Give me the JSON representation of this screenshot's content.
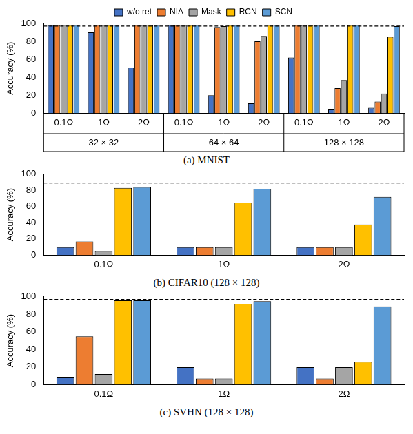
{
  "chart_data": [
    {
      "type": "bar",
      "caption": "(a) MNIST",
      "y_label": "Accuracy (%)",
      "categories": [
        "0.1Ω",
        "1Ω",
        "2Ω",
        "0.1Ω",
        "1Ω",
        "2Ω",
        "0.1Ω",
        "1Ω",
        "2Ω"
      ],
      "groups": [
        {
          "label": "32 × 32",
          "span": 3
        },
        {
          "label": "64 × 64",
          "span": 3
        },
        {
          "label": "128 × 128",
          "span": 3
        }
      ],
      "series": [
        {
          "name": "w/o ret",
          "color": "#4472c4",
          "values": [
            98,
            90,
            51,
            98,
            20,
            11,
            62,
            5,
            6
          ]
        },
        {
          "name": "NIA",
          "color": "#ed7d31",
          "values": [
            98,
            98,
            98,
            98,
            96,
            80,
            98,
            28,
            13
          ]
        },
        {
          "name": "Mask",
          "color": "#a5a5a5",
          "values": [
            98,
            98,
            98,
            98,
            97,
            86,
            98,
            37,
            22
          ]
        },
        {
          "name": "RCN",
          "color": "#ffc000",
          "values": [
            98,
            98,
            98,
            98,
            98,
            98,
            98,
            98,
            85
          ]
        },
        {
          "name": "SCN",
          "color": "#5b9bd5",
          "values": [
            98,
            98,
            98,
            98,
            98,
            98,
            98,
            98,
            97
          ]
        }
      ],
      "reference": 97,
      "ylim": [
        0,
        100
      ],
      "yticks": [
        0,
        20,
        40,
        60,
        80,
        100
      ],
      "grid": false,
      "legend": "top"
    },
    {
      "type": "bar",
      "caption": "(b) CIFAR10 (128 × 128)",
      "y_label": "Accuracy (%)",
      "categories": [
        "0.1Ω",
        "1Ω",
        "2Ω"
      ],
      "series": [
        {
          "name": "w/o ret",
          "color": "#4472c4",
          "values": [
            10,
            10,
            10
          ]
        },
        {
          "name": "NIA",
          "color": "#ed7d31",
          "values": [
            17,
            10,
            10
          ]
        },
        {
          "name": "Mask",
          "color": "#a5a5a5",
          "values": [
            5,
            10,
            10
          ]
        },
        {
          "name": "RCN",
          "color": "#ffc000",
          "values": [
            83,
            65,
            38
          ]
        },
        {
          "name": "SCN",
          "color": "#5b9bd5",
          "values": [
            84,
            82,
            72
          ]
        }
      ],
      "reference": 89,
      "ylim": [
        0,
        100
      ],
      "yticks": [
        0,
        20,
        40,
        60,
        80,
        100
      ],
      "grid": false
    },
    {
      "type": "bar",
      "caption": "(c) SVHN (128 × 128)",
      "y_label": "Accuracy (%)",
      "categories": [
        "0.1Ω",
        "1Ω",
        "2Ω"
      ],
      "series": [
        {
          "name": "w/o ret",
          "color": "#4472c4",
          "values": [
            9,
            20,
            20
          ]
        },
        {
          "name": "NIA",
          "color": "#ed7d31",
          "values": [
            55,
            7,
            7
          ]
        },
        {
          "name": "Mask",
          "color": "#a5a5a5",
          "values": [
            12,
            7,
            20
          ]
        },
        {
          "name": "RCN",
          "color": "#ffc000",
          "values": [
            96,
            92,
            26
          ]
        },
        {
          "name": "SCN",
          "color": "#5b9bd5",
          "values": [
            96,
            95,
            89
          ]
        }
      ],
      "reference": 97,
      "ylim": [
        0,
        100
      ],
      "yticks": [
        0,
        20,
        40,
        60,
        80,
        100
      ],
      "grid": false
    }
  ]
}
